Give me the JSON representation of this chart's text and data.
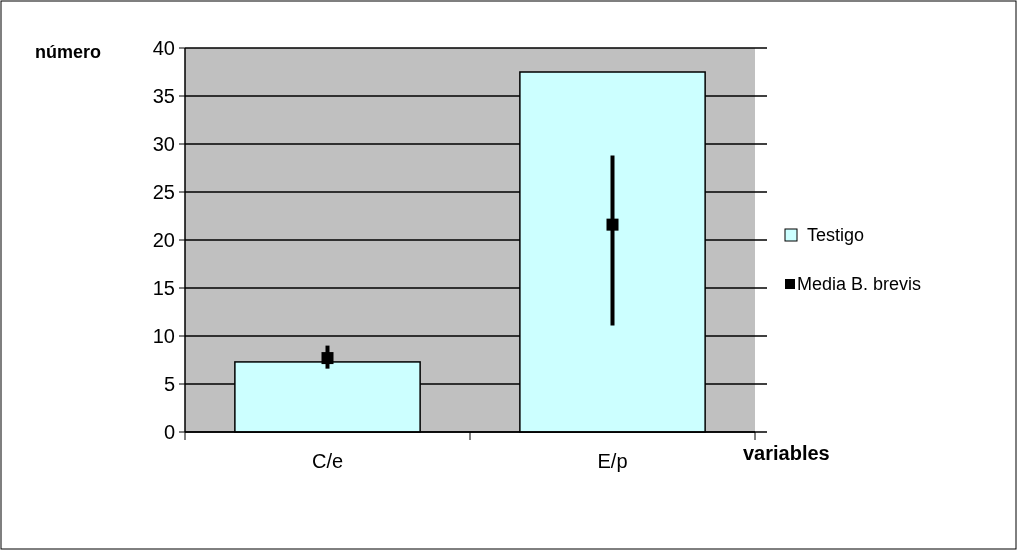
{
  "chart_data": {
    "type": "bar",
    "xlabel": "variables",
    "ylabel": "número",
    "categories": [
      "C/e",
      "E/p"
    ],
    "series": [
      {
        "name": "Testigo",
        "color": "#ccffff",
        "values": [
          7.3,
          37.5
        ]
      },
      {
        "name": "Media B. brevis",
        "type": "scatter",
        "color": "#000000",
        "x": [
          "C/e",
          "E/p"
        ],
        "values": [
          7.7,
          21.6
        ],
        "errors": [
          [
            6.6,
            9.0
          ],
          [
            11.1,
            28.8
          ]
        ]
      }
    ],
    "ylim": [
      0,
      40
    ],
    "yticks": [
      0,
      5,
      10,
      15,
      20,
      25,
      30,
      35,
      40
    ],
    "grid": "y",
    "legend": "right",
    "marker": "square"
  }
}
